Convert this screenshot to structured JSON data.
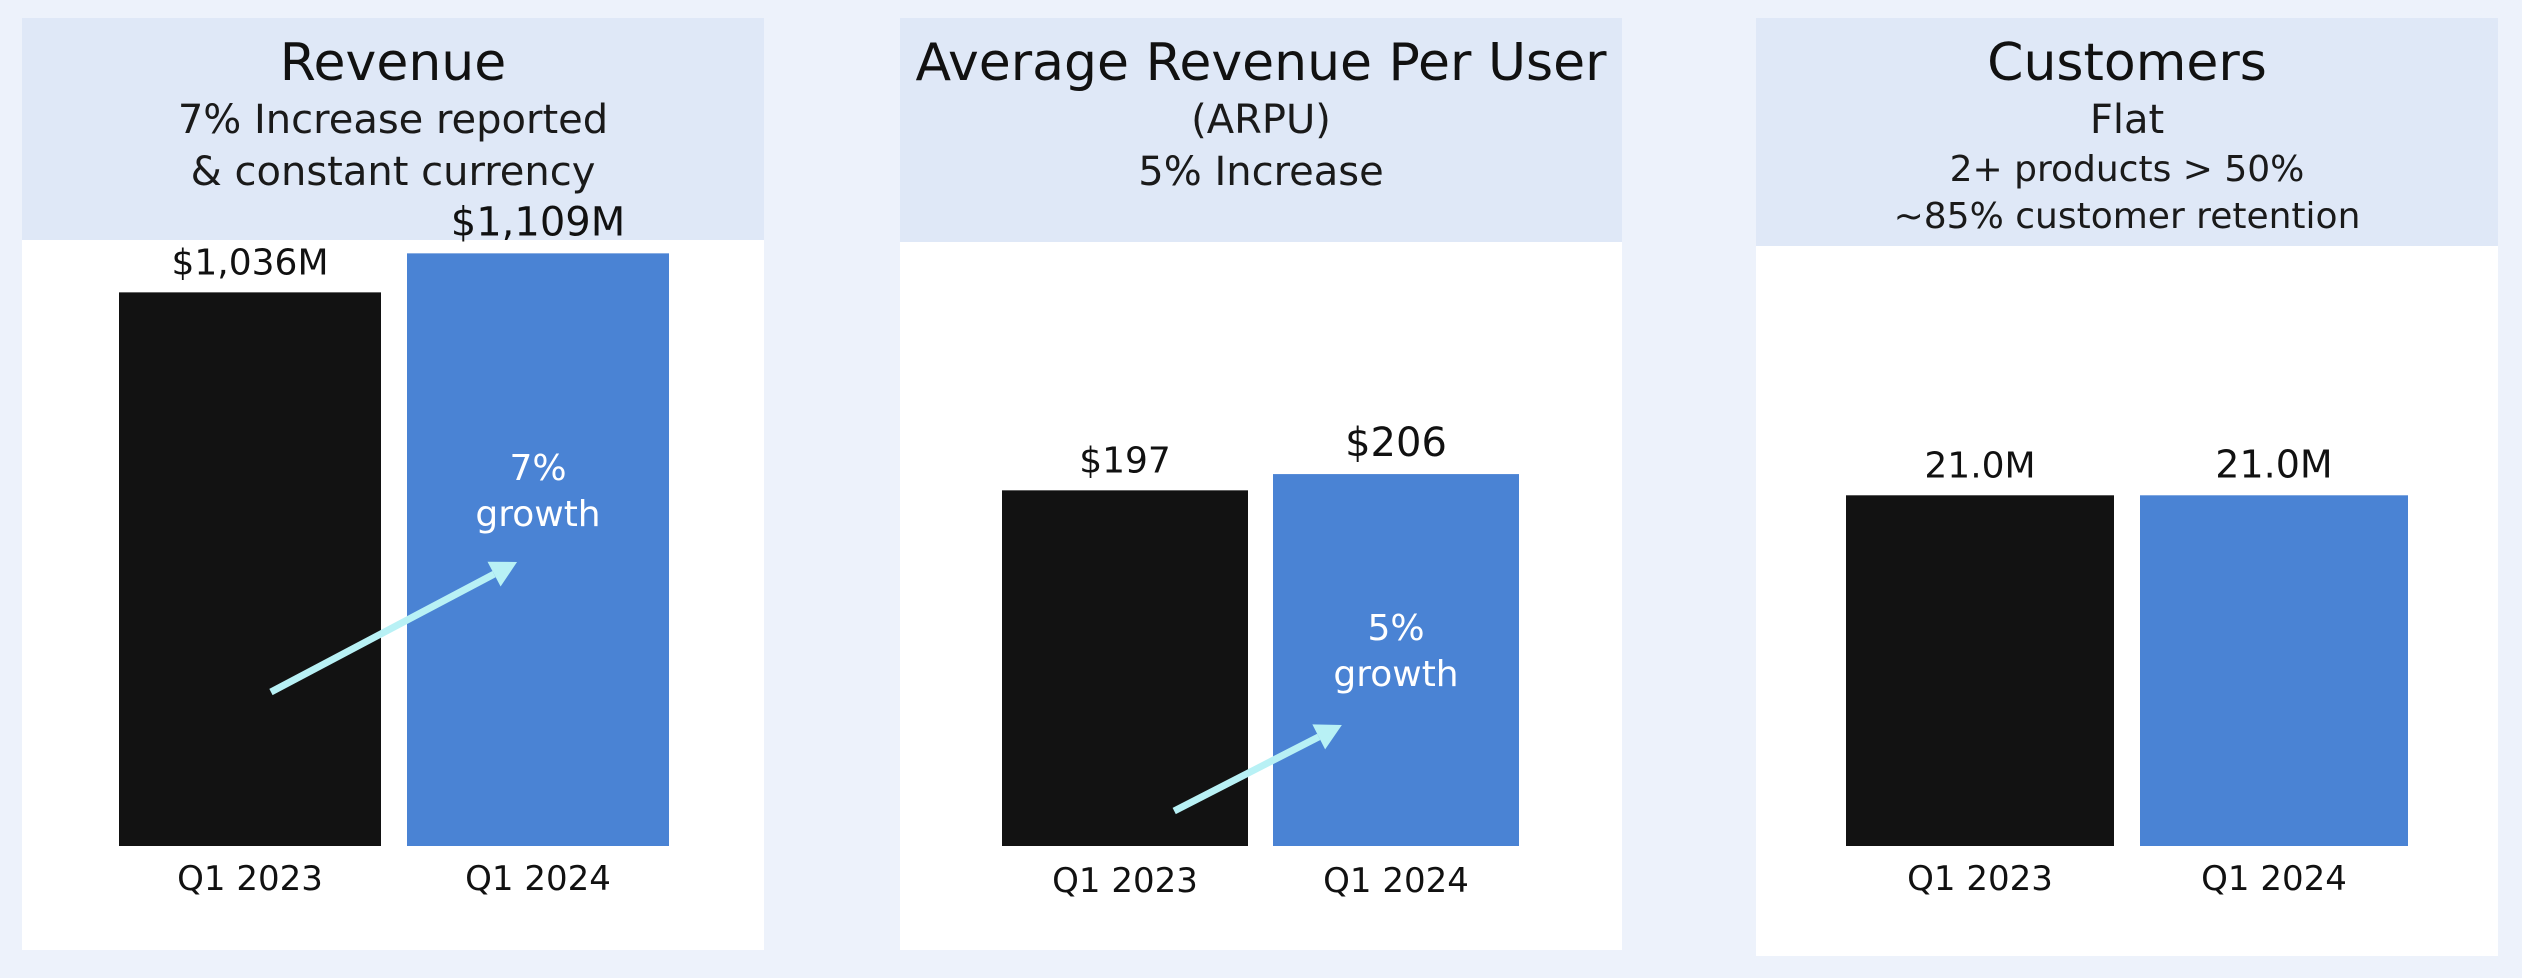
{
  "colors": {
    "q1_2023": "#121212",
    "q1_2024": "#4a83d4",
    "arrow": "#b8f1f5",
    "header_bg": "#dfe8f7",
    "page_bg": "#edf2fb"
  },
  "panels": [
    {
      "title": "Revenue",
      "subtitle": [
        "7% Increase reported",
        "& constant currency"
      ],
      "growth_label": [
        "7%",
        "growth"
      ]
    },
    {
      "title": "Average Revenue Per User",
      "subtitle": [
        "(ARPU)",
        "5% Increase"
      ],
      "growth_label": [
        "5%",
        "growth"
      ]
    },
    {
      "title": "Customers",
      "subtitle": [
        "Flat",
        "2+ products > 50%",
        "~85% customer retention"
      ],
      "growth_label": []
    }
  ],
  "chart_data": [
    {
      "type": "bar",
      "title": "Revenue",
      "categories": [
        "Q1 2023",
        "Q1 2024"
      ],
      "values": [
        1036,
        1109
      ],
      "value_labels": [
        "$1,036M",
        "$1,109M"
      ],
      "unit": "$M",
      "annotation": "7% growth",
      "ylim": [
        0,
        1250
      ],
      "grid": false
    },
    {
      "type": "bar",
      "title": "Average Revenue Per User",
      "categories": [
        "Q1 2023",
        "Q1 2024"
      ],
      "values": [
        197,
        206
      ],
      "value_labels": [
        "$197",
        "$206"
      ],
      "unit": "$",
      "annotation": "5% growth",
      "ylim": [
        0,
        370
      ],
      "grid": false
    },
    {
      "type": "bar",
      "title": "Customers",
      "categories": [
        "Q1 2023",
        "Q1 2024"
      ],
      "values": [
        21.0,
        21.0
      ],
      "value_labels": [
        "21.0M",
        "21.0M"
      ],
      "unit": "M",
      "ylim": [
        0,
        40
      ],
      "grid": false
    }
  ]
}
